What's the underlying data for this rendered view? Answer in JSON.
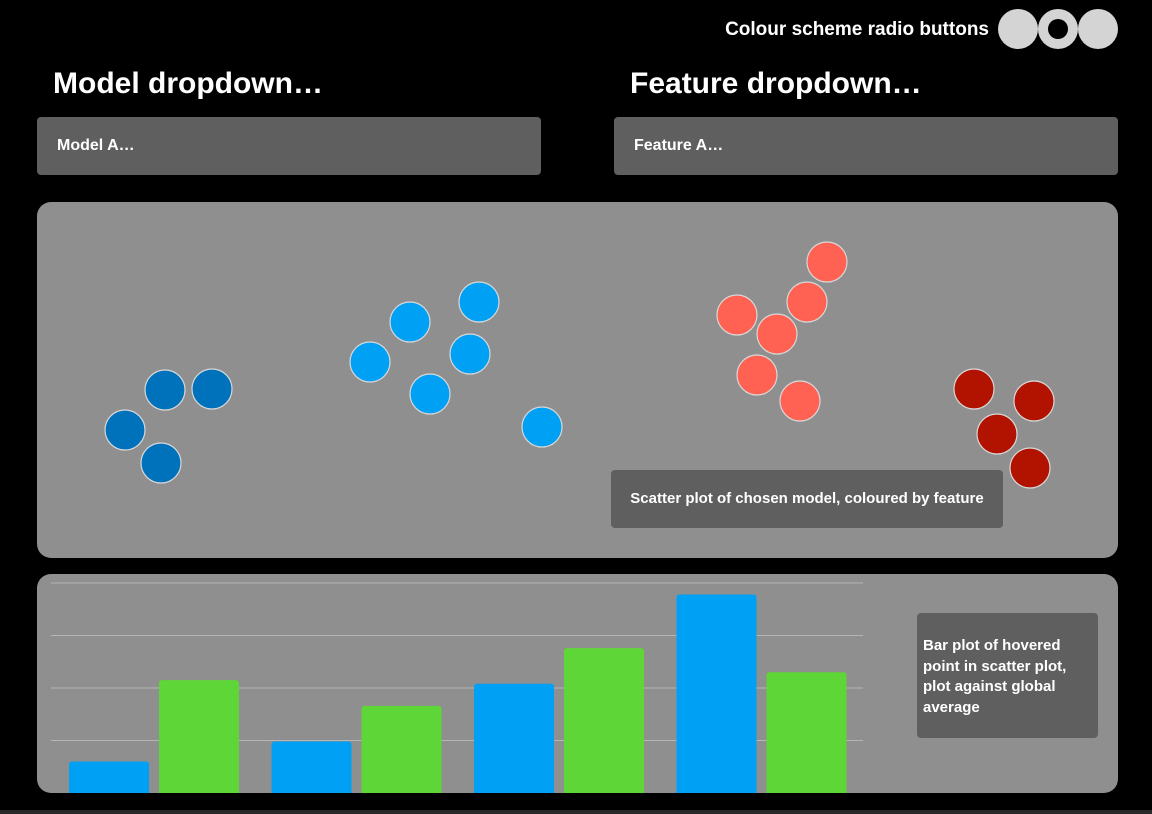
{
  "header": {
    "colour_scheme_label": "Colour scheme radio buttons",
    "radio_options": [
      {
        "selected": false
      },
      {
        "selected": true
      },
      {
        "selected": false
      }
    ]
  },
  "model": {
    "heading": "Model dropdown…",
    "selected": "Model A…"
  },
  "feature": {
    "heading": "Feature dropdown…",
    "selected": "Feature A…"
  },
  "scatter": {
    "caption": "Scatter plot of chosen model, coloured by feature",
    "clusters": [
      {
        "color": "#0072bb",
        "points": [
          [
            128,
            188
          ],
          [
            175,
            187
          ],
          [
            88,
            228
          ],
          [
            124,
            261
          ]
        ]
      },
      {
        "color": "#00a0f5",
        "points": [
          [
            442,
            100
          ],
          [
            373,
            120
          ],
          [
            433,
            152
          ],
          [
            333,
            160
          ],
          [
            393,
            192
          ],
          [
            505,
            225
          ]
        ]
      },
      {
        "color": "#ff6253",
        "points": [
          [
            790,
            60
          ],
          [
            770,
            100
          ],
          [
            700,
            113
          ],
          [
            740,
            132
          ],
          [
            720,
            173
          ],
          [
            763,
            199
          ]
        ]
      },
      {
        "color": "#b11300",
        "points": [
          [
            937,
            187
          ],
          [
            997,
            199
          ],
          [
            960,
            232
          ],
          [
            993,
            266
          ]
        ]
      }
    ]
  },
  "bars": {
    "caption": "Bar plot of hovered point in scatter plot, plot against global average",
    "hovered_color": "#00a0f5",
    "average_color": "#5fd637",
    "ylim": [
      0,
      4
    ],
    "groups": [
      {
        "hovered": 0.6,
        "average": 2.15
      },
      {
        "hovered": 0.98,
        "average": 1.66
      },
      {
        "hovered": 2.08,
        "average": 2.76
      },
      {
        "hovered": 3.78,
        "average": 2.3
      }
    ]
  },
  "colors": {
    "background": "#000000",
    "panel": "#8f8f8f",
    "control": "#5f5f5f",
    "radio": "#d4d4d4"
  }
}
